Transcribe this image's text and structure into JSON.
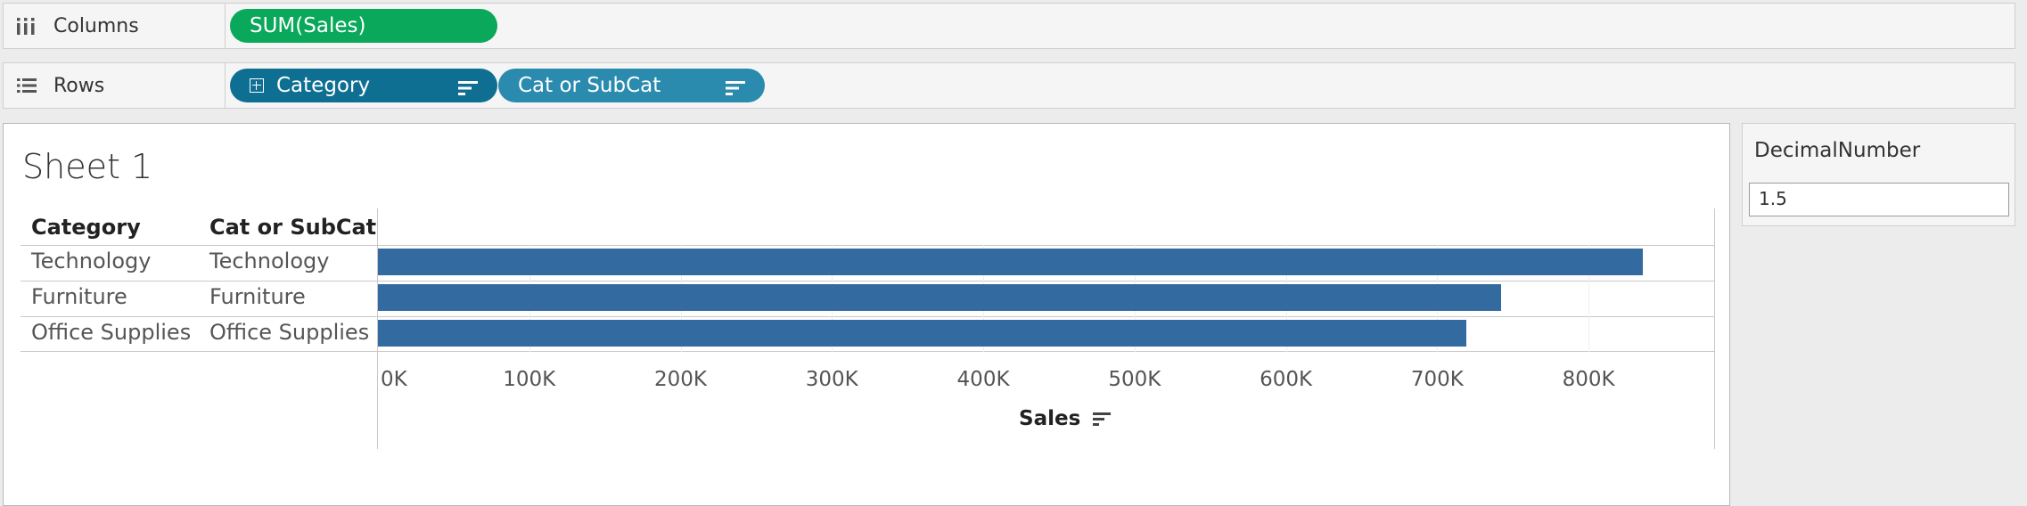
{
  "shelves": {
    "columns": {
      "label": "Columns",
      "pills": [
        {
          "text": "SUM(Sales)"
        }
      ]
    },
    "rows": {
      "label": "Rows",
      "pills": [
        {
          "text": "Category"
        },
        {
          "text": "Cat or SubCat"
        }
      ]
    }
  },
  "sheet": {
    "title": "Sheet 1",
    "headers": {
      "category": "Category",
      "cat_or_subcat": "Cat or SubCat"
    },
    "rows": [
      {
        "category": "Technology",
        "cat_or_subcat": "Technology"
      },
      {
        "category": "Furniture",
        "cat_or_subcat": "Furniture"
      },
      {
        "category": "Office Supplies",
        "cat_or_subcat": "Office Supplies"
      }
    ]
  },
  "chart_data": {
    "type": "bar",
    "orientation": "horizontal",
    "categories": [
      "Technology",
      "Furniture",
      "Office Supplies"
    ],
    "values": [
      836000,
      742000,
      719000
    ],
    "xlabel": "Sales",
    "tick_values": [
      0,
      100000,
      200000,
      300000,
      400000,
      500000,
      600000,
      700000,
      800000
    ],
    "tick_labels": [
      "0K",
      "100K",
      "200K",
      "300K",
      "400K",
      "500K",
      "600K",
      "700K",
      "800K"
    ],
    "xlim": [
      0,
      883000
    ],
    "bar_color": "#336a9f"
  },
  "parameter": {
    "title": "DecimalNumber",
    "value": "1.5"
  },
  "colors": {
    "pill_green": "#09a85a",
    "pill_blue_dark": "#0f6f92",
    "pill_blue_light": "#2a8bae"
  }
}
